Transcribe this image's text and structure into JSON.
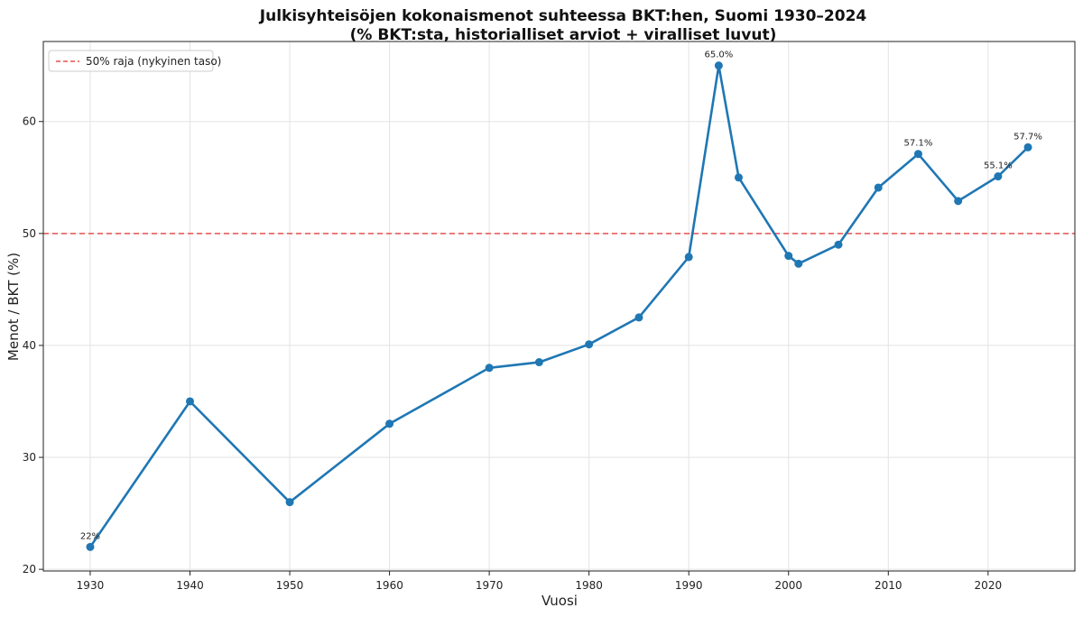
{
  "chart_data": {
    "type": "line",
    "title": "Julkisyhteisöjen kokonaismenot suhteessa BKT:hen, Suomi 1930–2024",
    "subtitle": "(% BKT:sta, historialliset arviot + viralliset luvut)",
    "xlabel": "Vuosi",
    "ylabel": "Menot / BKT (%)",
    "xlim": [
      1925.3,
      2028.7
    ],
    "ylim": [
      19.85,
      67.15
    ],
    "xticks": [
      1930,
      1940,
      1950,
      1960,
      1970,
      1980,
      1990,
      2000,
      2010,
      2020
    ],
    "yticks": [
      20,
      30,
      40,
      50,
      60
    ],
    "grid": true,
    "legend_position": "top-left",
    "colors": {
      "series": "#1f77b4",
      "reference": "#e8504f"
    },
    "series": [
      {
        "x": [
          1930,
          1940,
          1950,
          1960,
          1970,
          1975,
          1980,
          1985,
          1990,
          1993,
          1995,
          2000,
          2001,
          2005,
          2009,
          2013,
          2017,
          2021,
          2024
        ],
        "values": [
          22.0,
          35.0,
          26.0,
          33.0,
          38.0,
          38.5,
          40.1,
          42.5,
          47.9,
          65.0,
          55.0,
          48.0,
          47.3,
          49.0,
          54.1,
          57.1,
          52.9,
          55.1,
          57.7
        ]
      }
    ],
    "reference_line": {
      "y": 50,
      "label": "50% raja (nykyinen taso)",
      "style": "dashed"
    },
    "annotations": [
      {
        "x": 1930,
        "y": 22.0,
        "text": "22%"
      },
      {
        "x": 1993,
        "y": 65.0,
        "text": "65.0%"
      },
      {
        "x": 2013,
        "y": 57.1,
        "text": "57.1%"
      },
      {
        "x": 2021,
        "y": 55.1,
        "text": "55.1%"
      },
      {
        "x": 2024,
        "y": 57.7,
        "text": "57.7%"
      }
    ]
  }
}
